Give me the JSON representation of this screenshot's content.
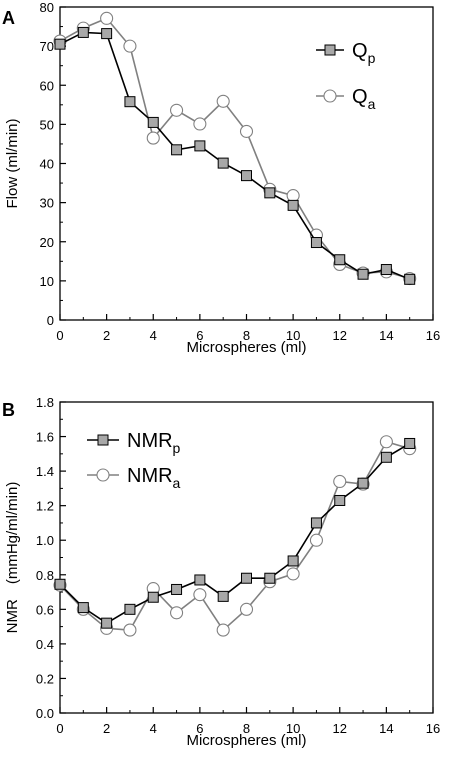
{
  "chart_data": [
    {
      "panel_label": "A",
      "type": "line",
      "xlabel": "Microspheres (ml)",
      "ylabel": "Flow (ml/min)",
      "xlim": [
        0,
        16
      ],
      "ylim": [
        0,
        80
      ],
      "xticks": [
        0,
        2,
        4,
        6,
        8,
        10,
        12,
        14,
        16
      ],
      "yticks": [
        0,
        10,
        20,
        30,
        40,
        50,
        60,
        70,
        80
      ],
      "legend_position": "top-right",
      "grid": false,
      "x": [
        0,
        1,
        2,
        3,
        4,
        5,
        6,
        7,
        8,
        9,
        10,
        11,
        12,
        13,
        14,
        15
      ],
      "series": [
        {
          "name": "Q",
          "subscript": "p",
          "marker": "square",
          "line_color": "#000000",
          "marker_fill": "#a8a8a8",
          "values": [
            70.5,
            73.5,
            73.2,
            55.8,
            50.5,
            43.5,
            44.5,
            40.1,
            36.9,
            32.5,
            29.3,
            19.8,
            15.4,
            11.7,
            12.9,
            10.4
          ]
        },
        {
          "name": "Q",
          "subscript": "a",
          "marker": "circle",
          "line_color": "#808080",
          "marker_fill": "#ffffff",
          "values": [
            71.3,
            74.6,
            77.1,
            70.0,
            46.5,
            53.6,
            50.1,
            55.9,
            48.2,
            33.4,
            31.8,
            21.7,
            14.2,
            12.0,
            12.3,
            10.6
          ]
        }
      ]
    },
    {
      "panel_label": "B",
      "type": "line",
      "xlabel": "Microspheres (ml)",
      "ylabel": "NMR　(mmHg/ml/min)",
      "xlim": [
        0,
        16
      ],
      "ylim": [
        0.0,
        1.8
      ],
      "xticks": [
        0,
        2,
        4,
        6,
        8,
        10,
        12,
        14,
        16
      ],
      "yticks": [
        "0.0",
        "0.2",
        "0.4",
        "0.6",
        "0.8",
        "1.0",
        "1.2",
        "1.4",
        "1.6",
        "1.8"
      ],
      "legend_position": "top-left",
      "grid": false,
      "x": [
        0,
        1,
        2,
        3,
        4,
        5,
        6,
        7,
        8,
        9,
        10,
        11,
        12,
        13,
        14,
        15
      ],
      "series": [
        {
          "name": "NMR",
          "subscript": "p",
          "marker": "square",
          "line_color": "#000000",
          "marker_fill": "#a8a8a8",
          "values": [
            0.745,
            0.61,
            0.52,
            0.6,
            0.67,
            0.715,
            0.77,
            0.675,
            0.78,
            0.78,
            0.88,
            1.1,
            1.23,
            1.33,
            1.48,
            1.56
          ]
        },
        {
          "name": "NMR",
          "subscript": "a",
          "marker": "circle",
          "line_color": "#808080",
          "marker_fill": "#ffffff",
          "values": [
            0.74,
            0.6,
            0.49,
            0.48,
            0.72,
            0.58,
            0.685,
            0.48,
            0.6,
            0.76,
            0.805,
            1.0,
            1.34,
            1.325,
            1.57,
            1.53
          ]
        }
      ]
    }
  ]
}
